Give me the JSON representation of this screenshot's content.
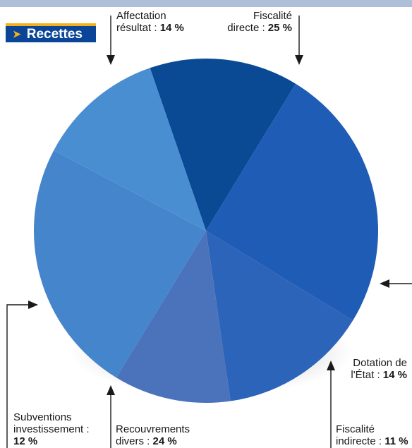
{
  "tag": {
    "label": "Recettes"
  },
  "chart_data": {
    "type": "pie",
    "title": "Recettes",
    "series": [
      {
        "values": [
          {
            "label": "Affectation résultat",
            "value": 14
          },
          {
            "label": "Fiscalité directe",
            "value": 25
          },
          {
            "label": "Dotation de l'État",
            "value": 14
          },
          {
            "label": "Fiscalité indirecte",
            "value": 11
          },
          {
            "label": "Recouvrements divers",
            "value": 24
          },
          {
            "label": "Subventions investissement",
            "value": 12
          }
        ]
      }
    ],
    "colors": [
      "#0a4a94",
      "#1f5cb5",
      "#2c64b9",
      "#4a73bc",
      "#4585cb",
      "#4a8ed2"
    ]
  },
  "labels": {
    "affectation": {
      "line1": "Affectation",
      "line2": "résultat : ",
      "value": "14 %"
    },
    "fiscalite_directe": {
      "line1": "Fiscalité",
      "line2": "directe : ",
      "value": "25 %"
    },
    "dotation": {
      "line1": "Dotation de",
      "line2": "l'État : ",
      "value": "14 %"
    },
    "fiscalite_indirecte": {
      "line1": "Fiscalité",
      "line2": "indirecte : ",
      "value": "11 %"
    },
    "recouvrements": {
      "line1": "Recouvrements",
      "line2": "divers : ",
      "value": "24 %"
    },
    "subventions": {
      "line1": "Subventions",
      "line2": "investissement :",
      "value": "12 %"
    }
  }
}
